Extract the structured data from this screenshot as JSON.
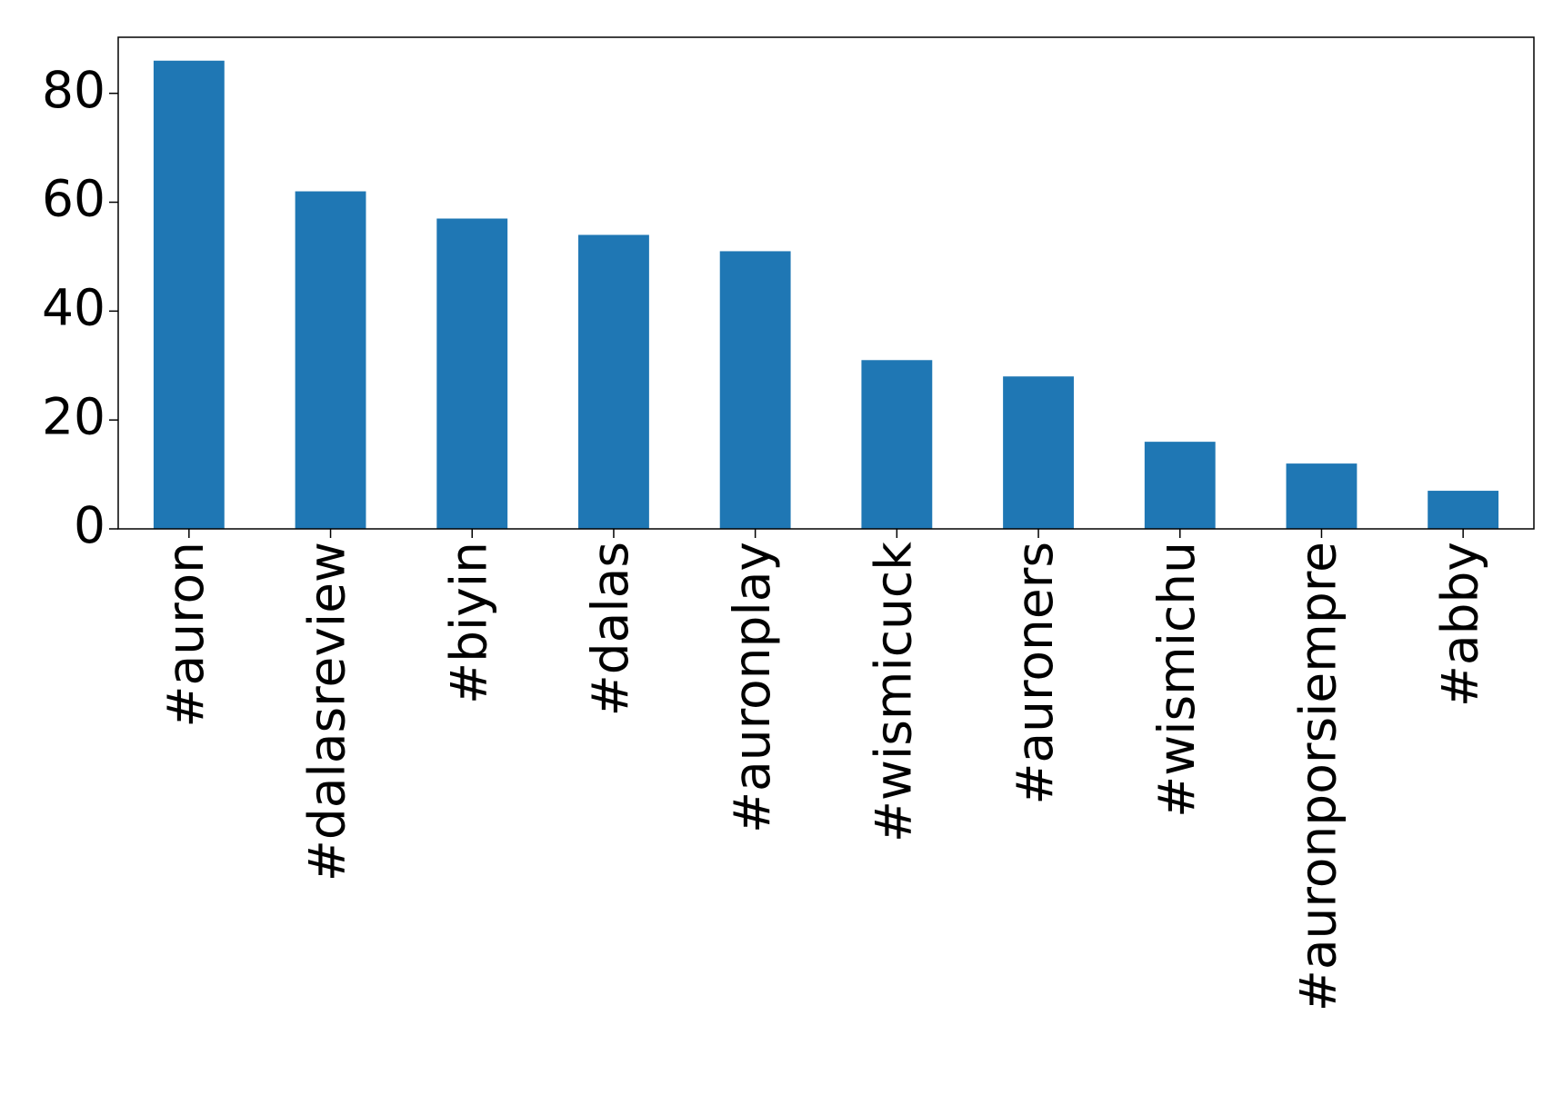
{
  "chart_data": {
    "type": "bar",
    "categories": [
      "#auron",
      "#dalasreview",
      "#biyin",
      "#dalas",
      "#auronplay",
      "#wismicuck",
      "#auroners",
      "#wismichu",
      "#auronporsiempre",
      "#abby"
    ],
    "values": [
      86,
      62,
      57,
      54,
      51,
      31,
      28,
      16,
      12,
      7
    ],
    "color": "#1f77b4",
    "ylim": [
      0,
      90.3
    ],
    "yticks": [
      0,
      20,
      40,
      60,
      80
    ],
    "grid": false
  }
}
